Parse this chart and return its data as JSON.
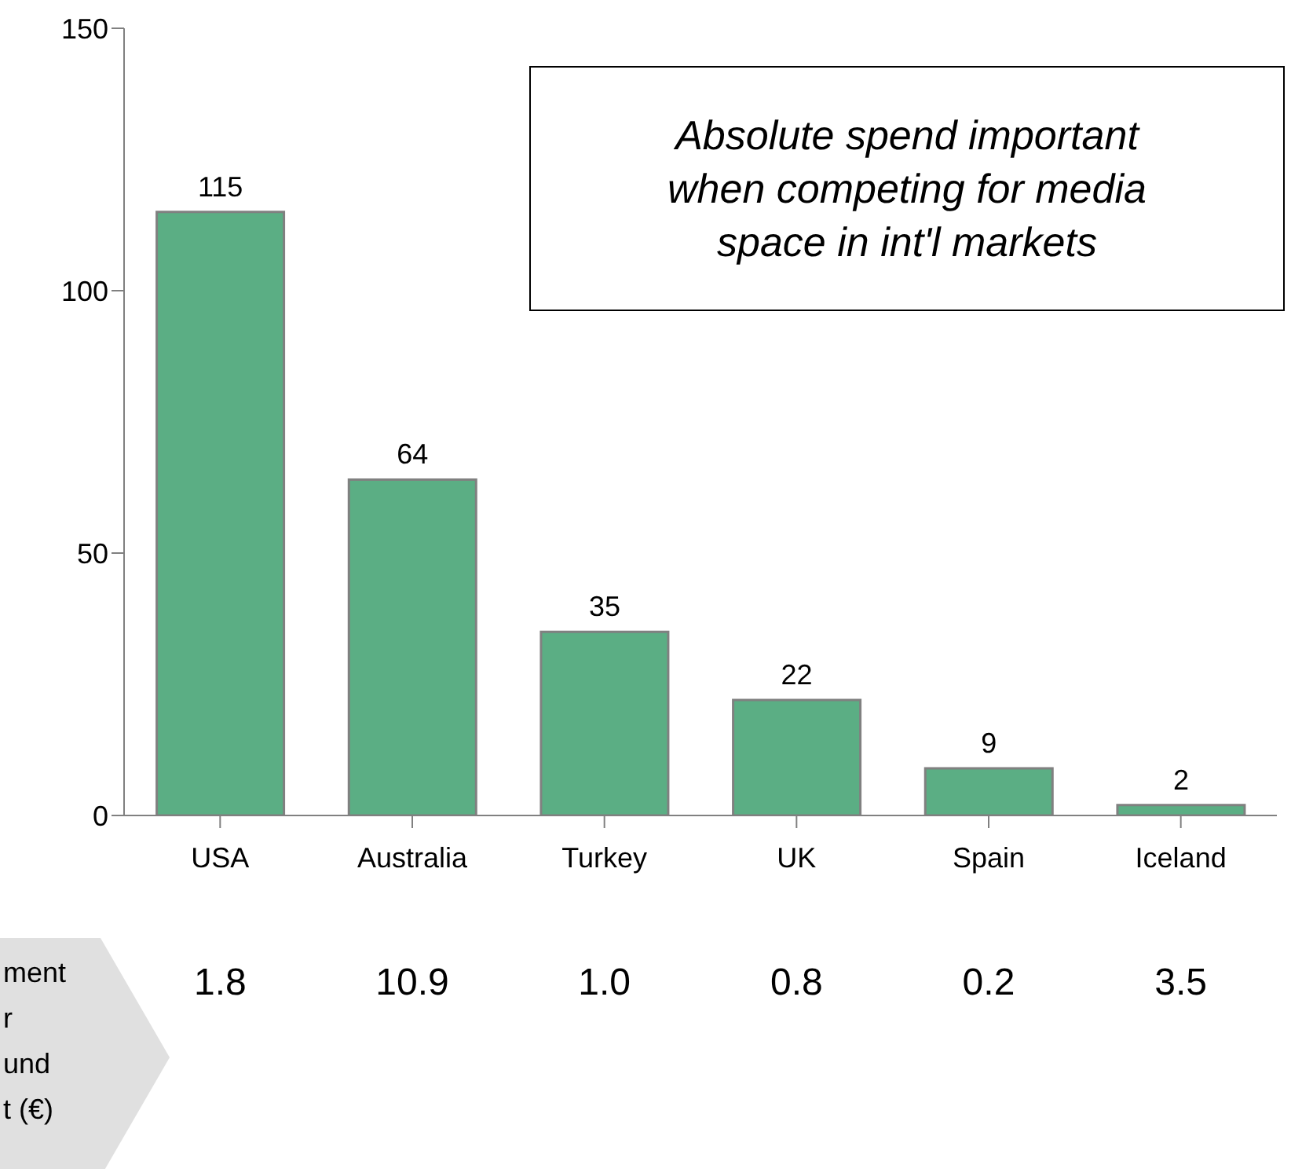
{
  "chart_data": {
    "type": "bar",
    "categories": [
      "USA",
      "Australia",
      "Turkey",
      "UK",
      "Spain",
      "Iceland"
    ],
    "values": [
      115,
      64,
      35,
      22,
      9,
      2
    ],
    "color": "#5bae84",
    "ylim": [
      0,
      150
    ],
    "yticks": [
      0,
      50,
      100,
      150
    ],
    "grid": false,
    "data_labels": true,
    "legend": false,
    "annotations": [
      "Absolute spend important when competing for media space in int'l markets",
      "ment\nr\nund\nt (€)",
      "1.8",
      "10.9",
      "1.0",
      "0.8",
      "0.2",
      "3.5"
    ]
  }
}
